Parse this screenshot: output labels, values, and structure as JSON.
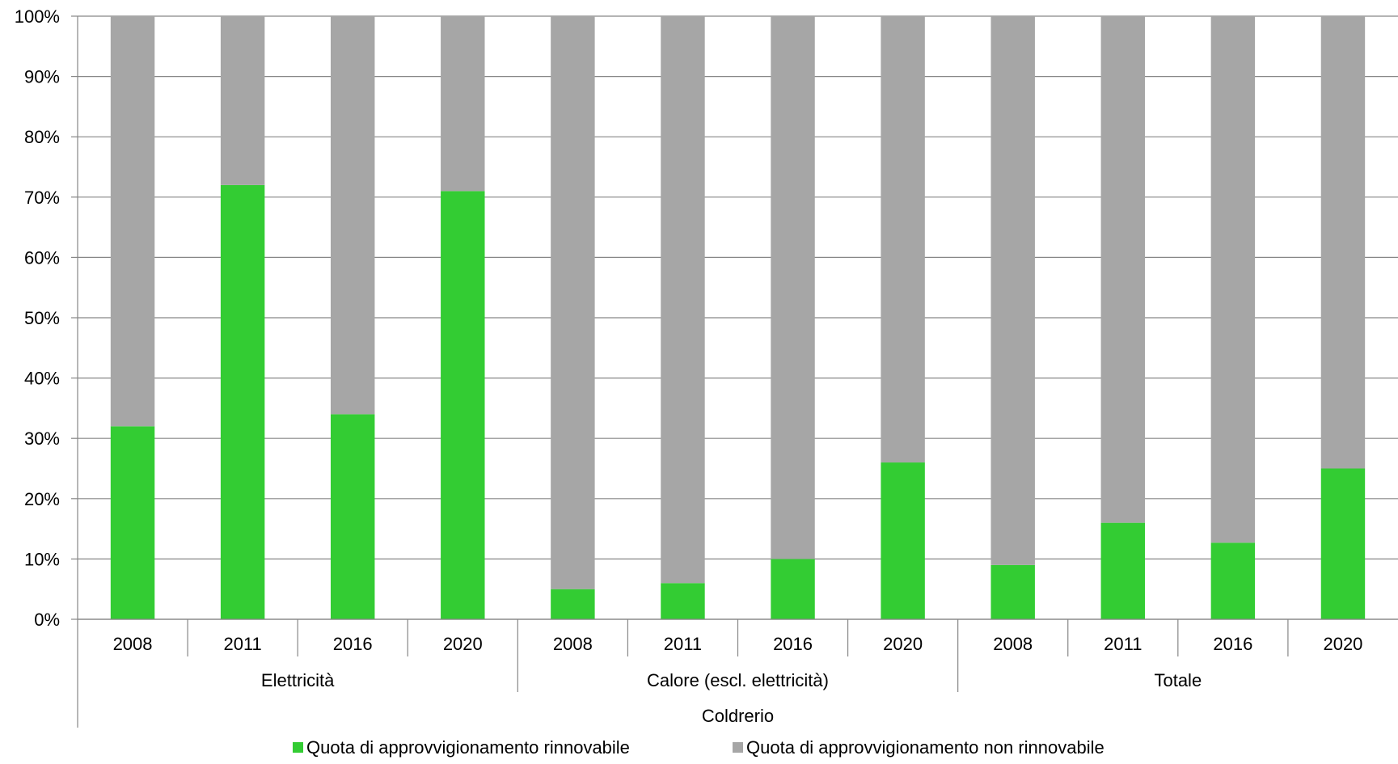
{
  "chart_data": {
    "type": "bar",
    "stacked": true,
    "percent_scale": true,
    "ylim": [
      0,
      100
    ],
    "y_ticks": [
      "0%",
      "10%",
      "20%",
      "30%",
      "40%",
      "50%",
      "60%",
      "70%",
      "80%",
      "90%",
      "100%"
    ],
    "grid": true,
    "legend_position": "bottom",
    "top_group": "Coldrerio",
    "groups": [
      {
        "name": "Elettricità",
        "categories": [
          "2008",
          "2011",
          "2016",
          "2020"
        ]
      },
      {
        "name": "Calore (escl. elettricità)",
        "categories": [
          "2008",
          "2011",
          "2016",
          "2020"
        ]
      },
      {
        "name": "Totale",
        "categories": [
          "2008",
          "2011",
          "2016",
          "2020"
        ]
      }
    ],
    "series": [
      {
        "name": "Quota di approvvigionamento rinnovabile",
        "color": "#33cc33",
        "values": [
          32,
          72,
          34,
          71,
          5,
          6,
          10,
          26,
          9,
          16,
          12.7,
          25
        ]
      },
      {
        "name": "Quota di approvvigionamento non rinnovabile",
        "color": "#a6a6a6",
        "values": [
          68,
          28,
          66,
          29,
          95,
          94,
          90,
          74,
          91,
          84,
          87.3,
          75
        ]
      }
    ]
  }
}
